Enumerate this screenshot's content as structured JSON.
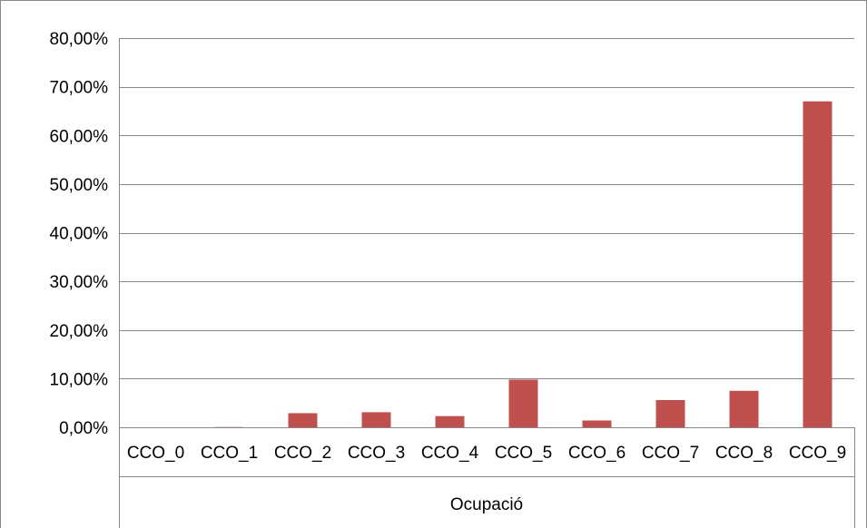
{
  "chart_data": {
    "type": "bar",
    "title": "",
    "ylabel": "",
    "xlabel": "Ocupació",
    "categories": [
      "CCO_0",
      "CCO_1",
      "CCO_2",
      "CCO_3",
      "CCO_4",
      "CCO_5",
      "CCO_6",
      "CCO_7",
      "CCO_8",
      "CCO_9"
    ],
    "values": [
      0.0,
      0.05,
      2.9,
      3.1,
      2.3,
      9.8,
      1.4,
      5.6,
      7.5,
      67.0
    ],
    "ylim": [
      0,
      80
    ],
    "yticks": [
      0,
      10,
      20,
      30,
      40,
      50,
      60,
      70,
      80
    ],
    "ytick_labels": [
      "0,00%",
      "10,00%",
      "20,00%",
      "30,00%",
      "40,00%",
      "50,00%",
      "60,00%",
      "70,00%",
      "80,00%"
    ],
    "grid": true,
    "legend": "none",
    "bar_color": "#c0504d"
  }
}
